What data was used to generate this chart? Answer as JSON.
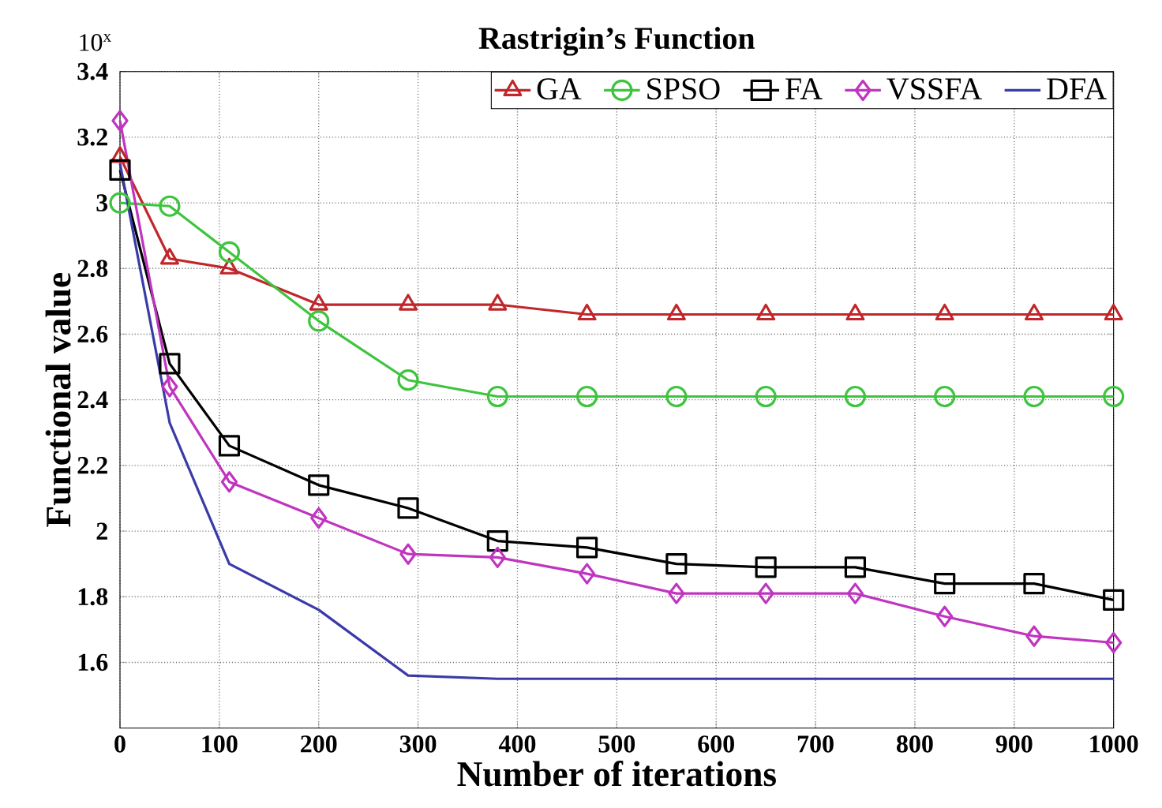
{
  "chart_data": {
    "type": "line",
    "title": "Rastrigin’s Function",
    "xlabel": "Number of iterations",
    "ylabel": "Functional value",
    "annotations": [
      "10$^{x}$"
    ],
    "xlim": [
      0,
      1000
    ],
    "xticks": [
      0,
      100,
      200,
      300,
      400,
      500,
      600,
      700,
      800,
      900,
      1000
    ],
    "ylim": [
      1.4,
      3.4
    ],
    "yticks": [
      1.6,
      1.8,
      2,
      2.2,
      2.4,
      2.6,
      2.8,
      3,
      3.2,
      3.4
    ],
    "grid": true,
    "legend": "top right",
    "line_style": "solid",
    "series": [
      {
        "name": "GA",
        "color": "#c0262a",
        "marker": "triangle",
        "x": [
          0,
          50,
          110,
          200,
          290,
          380,
          470,
          560,
          650,
          740,
          830,
          920,
          1000
        ],
        "values": [
          3.14,
          2.83,
          2.8,
          2.69,
          2.69,
          2.69,
          2.66,
          2.66,
          2.66,
          2.66,
          2.66,
          2.66,
          2.66
        ]
      },
      {
        "name": "SPSO",
        "color": "#3ec43e",
        "marker": "circle",
        "x": [
          0,
          50,
          110,
          200,
          290,
          380,
          470,
          560,
          650,
          740,
          830,
          920,
          1000
        ],
        "values": [
          3.0,
          2.99,
          2.85,
          2.64,
          2.46,
          2.41,
          2.41,
          2.41,
          2.41,
          2.41,
          2.41,
          2.41,
          2.41
        ]
      },
      {
        "name": "FA",
        "color": "#000000",
        "marker": "square",
        "x": [
          0,
          50,
          110,
          200,
          290,
          380,
          470,
          560,
          650,
          740,
          830,
          920,
          1000
        ],
        "values": [
          3.1,
          2.51,
          2.26,
          2.14,
          2.07,
          1.97,
          1.95,
          1.9,
          1.89,
          1.89,
          1.84,
          1.84,
          1.79
        ]
      },
      {
        "name": "VSSFA",
        "color": "#c035c0",
        "marker": "diamond",
        "x": [
          0,
          50,
          110,
          200,
          290,
          380,
          470,
          560,
          650,
          740,
          830,
          920,
          1000
        ],
        "values": [
          3.25,
          2.44,
          2.15,
          2.04,
          1.93,
          1.92,
          1.87,
          1.81,
          1.81,
          1.81,
          1.74,
          1.68,
          1.66
        ]
      },
      {
        "name": "DFA",
        "color": "#3a3aa8",
        "marker": "none",
        "x": [
          0,
          50,
          110,
          200,
          290,
          380,
          1000
        ],
        "values": [
          3.12,
          2.33,
          1.9,
          1.76,
          1.56,
          1.55,
          1.55
        ]
      }
    ]
  }
}
